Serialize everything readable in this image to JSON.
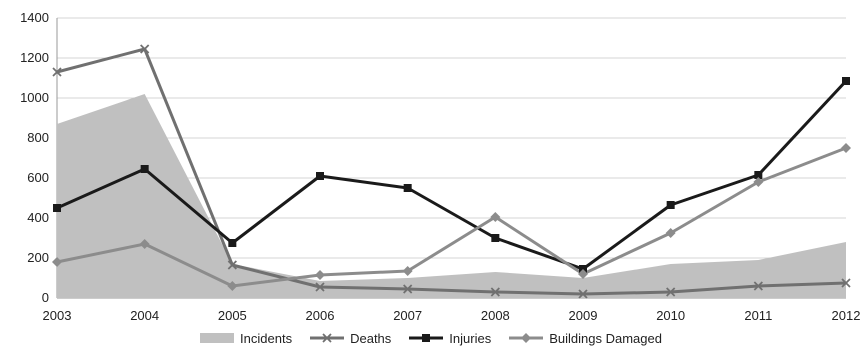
{
  "chart_data": {
    "type": "line",
    "x": [
      "2003",
      "2004",
      "2005",
      "2006",
      "2007",
      "2008",
      "2009",
      "2010",
      "2011",
      "2012"
    ],
    "ylim": [
      0,
      1400
    ],
    "yticks": [
      0,
      200,
      400,
      600,
      800,
      1000,
      1200,
      1400
    ],
    "grid": true,
    "legend_position": "bottom",
    "series": [
      {
        "name": "Incidents",
        "kind": "area",
        "color": "#c0c0c0",
        "values": [
          870,
          1020,
          170,
          85,
          100,
          130,
          100,
          170,
          190,
          280
        ]
      },
      {
        "name": "Deaths",
        "kind": "line",
        "marker": "x",
        "color": "#707070",
        "values": [
          1130,
          1245,
          165,
          55,
          45,
          30,
          20,
          30,
          60,
          75
        ]
      },
      {
        "name": "Injuries",
        "kind": "line",
        "marker": "square",
        "color": "#1a1a1a",
        "values": [
          450,
          645,
          275,
          610,
          550,
          300,
          145,
          465,
          615,
          1085
        ]
      },
      {
        "name": "Buildings Damaged",
        "kind": "line",
        "marker": "diamond",
        "color": "#8c8c8c",
        "values": [
          180,
          270,
          60,
          115,
          135,
          405,
          120,
          325,
          580,
          750
        ]
      }
    ]
  }
}
